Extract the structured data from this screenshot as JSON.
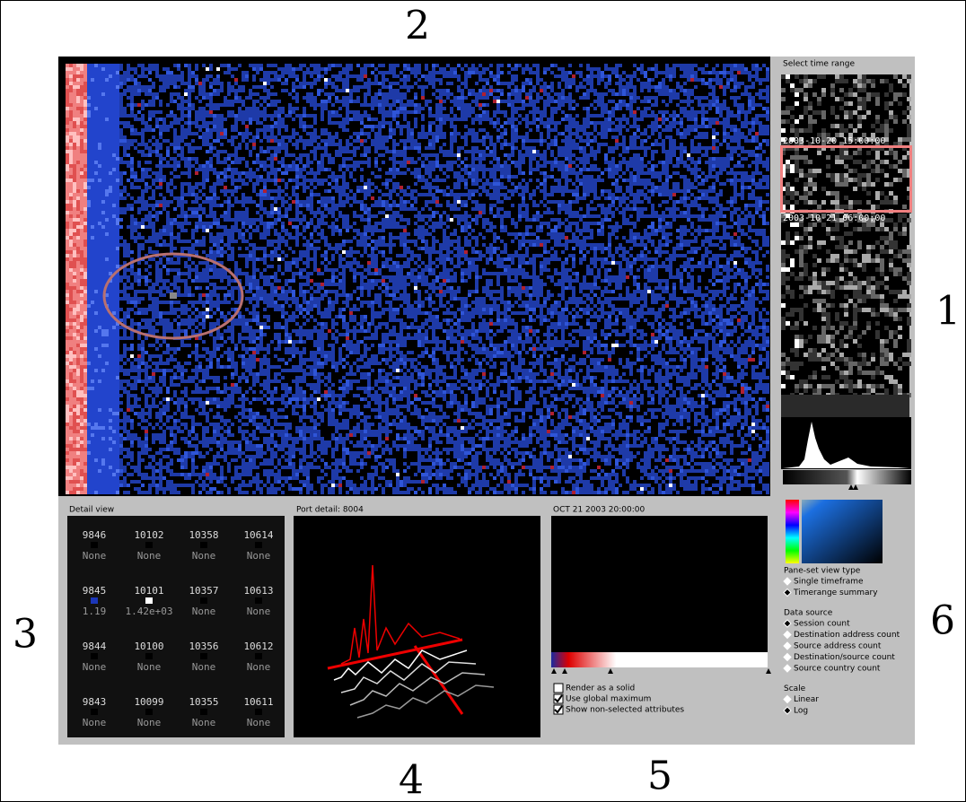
{
  "labels": {
    "top": "2",
    "right": "1",
    "left": "3",
    "bottom_left": "4",
    "bottom_mid": "5",
    "bottom_right": "6"
  },
  "time_range": {
    "title": "Select time range",
    "stamps": [
      "2003-10-20 15:00:00",
      "2003-10-21 06:00:00"
    ]
  },
  "detail_view": {
    "title": "Detail view",
    "cells": [
      [
        {
          "port": "9846",
          "value": "None",
          "color": "#000"
        },
        {
          "port": "10102",
          "value": "None",
          "color": "#000"
        },
        {
          "port": "10358",
          "value": "None",
          "color": "#000"
        },
        {
          "port": "10614",
          "value": "None",
          "color": "#000"
        }
      ],
      [
        {
          "port": "9845",
          "value": "1.19",
          "color": "#1b36b8"
        },
        {
          "port": "10101",
          "value": "1.42e+03",
          "color": "#ffffff"
        },
        {
          "port": "10357",
          "value": "None",
          "color": "#000"
        },
        {
          "port": "10613",
          "value": "None",
          "color": "#000"
        }
      ],
      [
        {
          "port": "9844",
          "value": "None",
          "color": "#000"
        },
        {
          "port": "10100",
          "value": "None",
          "color": "#000"
        },
        {
          "port": "10356",
          "value": "None",
          "color": "#000"
        },
        {
          "port": "10612",
          "value": "None",
          "color": "#000"
        }
      ],
      [
        {
          "port": "9843",
          "value": "None",
          "color": "#000"
        },
        {
          "port": "10099",
          "value": "None",
          "color": "#000"
        },
        {
          "port": "10355",
          "value": "None",
          "color": "#000"
        },
        {
          "port": "10611",
          "value": "None",
          "color": "#000"
        }
      ]
    ]
  },
  "port_detail": {
    "title": "Port detail: 8004"
  },
  "timeframe": {
    "title": "OCT 21 2003 20:00:00",
    "options": [
      {
        "label": "Render as a solid",
        "checked": false
      },
      {
        "label": "Use global maximum",
        "checked": true
      },
      {
        "label": "Show non-selected attributes",
        "checked": true
      }
    ]
  },
  "controls": {
    "view_type": {
      "title": "Pane-set view type",
      "options": [
        "Single timeframe",
        "Timerange summary"
      ],
      "selected": 1
    },
    "data_source": {
      "title": "Data source",
      "options": [
        "Session count",
        "Destination address count",
        "Source address count",
        "Destination/source count",
        "Source country count"
      ],
      "selected": 0
    },
    "scale": {
      "title": "Scale",
      "options": [
        "Linear",
        "Log"
      ],
      "selected": 1
    }
  }
}
